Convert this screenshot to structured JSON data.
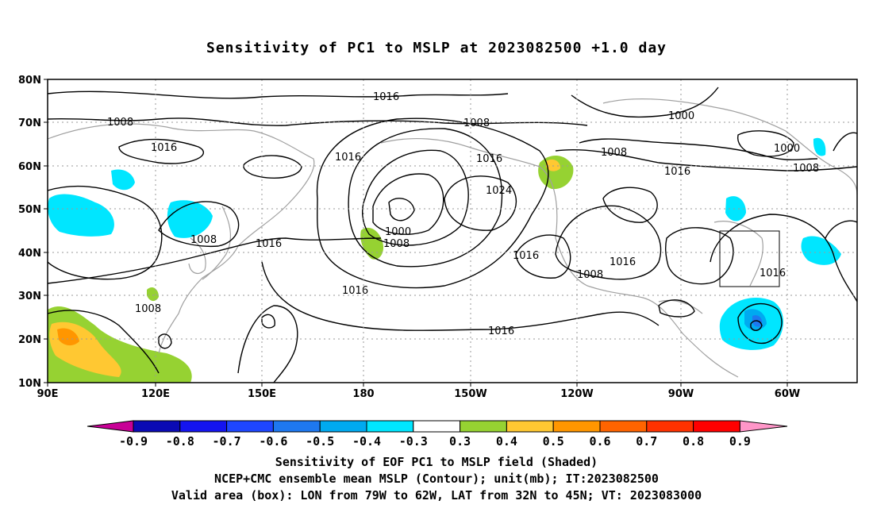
{
  "title": "Sensitivity of PC1 to MSLP at 2023082500 +1.0 day",
  "map": {
    "lat_ticks": [
      "80N",
      "70N",
      "60N",
      "50N",
      "40N",
      "30N",
      "20N",
      "10N"
    ],
    "lon_ticks": [
      "90E",
      "120E",
      "150E",
      "180",
      "150W",
      "120W",
      "90W",
      "60W"
    ],
    "contour_labels": [
      "1016",
      "1008",
      "1016",
      "1016",
      "1008",
      "1016",
      "1024",
      "1000",
      "1008",
      "1000",
      "1008",
      "1000",
      "1008",
      "1016",
      "1008",
      "1016",
      "1016",
      "1016",
      "1016",
      "1008",
      "1016",
      "1016",
      "1008"
    ],
    "valid_box": {
      "lon": [
        "79W",
        "62W"
      ],
      "lat": [
        "32N",
        "45N"
      ]
    }
  },
  "colorbar": {
    "labels": [
      "-0.9",
      "-0.8",
      "-0.7",
      "-0.6",
      "-0.5",
      "-0.4",
      "-0.3",
      "0.3",
      "0.4",
      "0.5",
      "0.6",
      "0.7",
      "0.8",
      "0.9"
    ],
    "colors": [
      "#0a0ab4",
      "#1414f0",
      "#1e46ff",
      "#1e78f0",
      "#00aaf0",
      "#00e6ff",
      "#ffffff",
      "#96d232",
      "#ffc832",
      "#ff9600",
      "#ff6400",
      "#ff3200",
      "#ff0000"
    ],
    "left_arrow_color": "#c80096",
    "right_arrow_color": "#ff96c8"
  },
  "caption": [
    "Sensitivity of EOF PC1 to MSLP field (Shaded)",
    "NCEP+CMC ensemble mean MSLP (Contour); unit(mb); IT:2023082500",
    "Valid area (box): LON from 79W to 62W, LAT from 32N to 45N; VT: 2023083000"
  ]
}
